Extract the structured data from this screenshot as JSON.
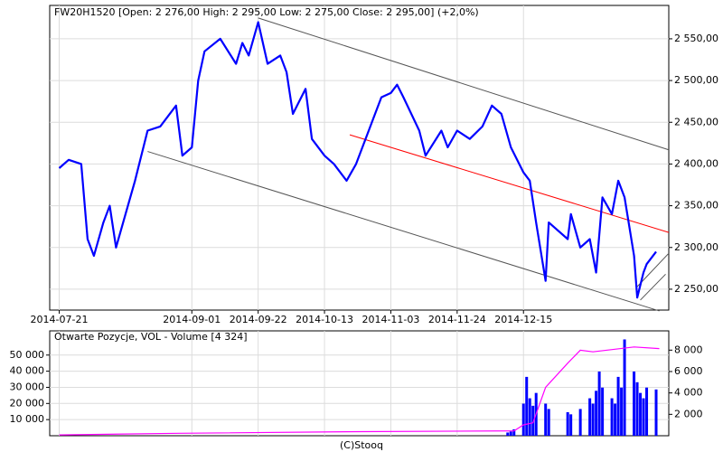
{
  "chart_data": [
    {
      "type": "line",
      "title": "FW20H1520 [Open: 2 276,00  High: 2 295,00  Low: 2 275,00  Close: 2 295,00] (+2,0%)",
      "color": "#0000ff",
      "x": [
        "2014-07-21",
        "2014-07-24",
        "2014-07-28",
        "2014-07-30",
        "2014-08-01",
        "2014-08-04",
        "2014-08-06",
        "2014-08-08",
        "2014-08-11",
        "2014-08-14",
        "2014-08-18",
        "2014-08-22",
        "2014-08-27",
        "2014-08-29",
        "2014-09-01",
        "2014-09-03",
        "2014-09-05",
        "2014-09-10",
        "2014-09-15",
        "2014-09-17",
        "2014-09-19",
        "2014-09-22",
        "2014-09-25",
        "2014-09-29",
        "2014-10-01",
        "2014-10-03",
        "2014-10-07",
        "2014-10-09",
        "2014-10-13",
        "2014-10-16",
        "2014-10-20",
        "2014-10-23",
        "2014-10-27",
        "2014-10-29",
        "2014-10-31",
        "2014-11-03",
        "2014-11-05",
        "2014-11-07",
        "2014-11-12",
        "2014-11-14",
        "2014-11-19",
        "2014-11-21",
        "2014-11-24",
        "2014-11-28",
        "2014-12-02",
        "2014-12-05",
        "2014-12-08",
        "2014-12-11",
        "2014-12-15",
        "2014-12-17",
        "2014-12-19",
        "2014-12-22",
        "2014-12-23",
        "2014-12-29",
        "2014-12-30",
        "2015-01-02",
        "2015-01-05",
        "2015-01-07",
        "2015-01-09",
        "2015-01-12",
        "2015-01-14",
        "2015-01-16",
        "2015-01-19",
        "2015-01-20",
        "2015-01-22",
        "2015-01-23",
        "2015-01-26"
      ],
      "values": [
        2395,
        2405,
        2400,
        2310,
        2290,
        2330,
        2350,
        2300,
        2340,
        2380,
        2440,
        2445,
        2470,
        2410,
        2420,
        2500,
        2535,
        2550,
        2520,
        2545,
        2530,
        2570,
        2520,
        2530,
        2510,
        2460,
        2490,
        2430,
        2410,
        2400,
        2380,
        2400,
        2440,
        2460,
        2480,
        2485,
        2495,
        2480,
        2440,
        2410,
        2440,
        2420,
        2440,
        2430,
        2445,
        2470,
        2460,
        2420,
        2390,
        2380,
        2330,
        2260,
        2330,
        2310,
        2340,
        2300,
        2310,
        2270,
        2360,
        2340,
        2380,
        2360,
        2290,
        2240,
        2270,
        2280,
        2295
      ],
      "trend_lines": [
        {
          "color": "#555555",
          "x": [
            "2014-09-22",
            "2015-01-30"
          ],
          "values": [
            2575,
            2417
          ]
        },
        {
          "color": "#555555",
          "x": [
            "2014-08-18",
            "2015-01-27"
          ],
          "values": [
            2415,
            2224
          ]
        },
        {
          "color": "#ff0000",
          "x": [
            "2014-10-21",
            "2015-01-30"
          ],
          "values": [
            2435,
            2318
          ]
        },
        {
          "color": "#555555",
          "x": [
            "2015-01-20",
            "2015-01-30"
          ],
          "values": [
            2253,
            2293
          ]
        },
        {
          "color": "#555555",
          "x": [
            "2015-01-21",
            "2015-01-29"
          ],
          "values": [
            2237,
            2268
          ]
        }
      ],
      "xlim": [
        "2014-07-18",
        "2015-01-30"
      ],
      "xticks": [
        "2014-07-21",
        "2014-09-01",
        "2014-09-22",
        "2014-10-13",
        "2014-11-03",
        "2014-11-24",
        "2014-12-15"
      ],
      "ylim": [
        2225,
        2590
      ],
      "yticks": [
        {
          "value": 2250,
          "label": "2 250,00"
        },
        {
          "value": 2300,
          "label": "2 300,00"
        },
        {
          "value": 2350,
          "label": "2 350,00"
        },
        {
          "value": 2400,
          "label": "2 400,00"
        },
        {
          "value": 2450,
          "label": "2 450,00"
        },
        {
          "value": 2500,
          "label": "2 500,00"
        },
        {
          "value": 2550,
          "label": "2 550,00"
        }
      ],
      "grid": true
    },
    {
      "type": "bar",
      "title": "Otwarte Pozycje, VOL - Volume [4 324]",
      "series": [
        {
          "type": "bar",
          "axis": "y2",
          "color": "#0000ff",
          "x": [
            "2014-12-10",
            "2014-12-11",
            "2014-12-12",
            "2014-12-15",
            "2014-12-16",
            "2014-12-17",
            "2014-12-18",
            "2014-12-19",
            "2014-12-22",
            "2014-12-23",
            "2014-12-29",
            "2014-12-30",
            "2015-01-02",
            "2015-01-05",
            "2015-01-06",
            "2015-01-07",
            "2015-01-08",
            "2015-01-09",
            "2015-01-12",
            "2015-01-13",
            "2015-01-14",
            "2015-01-15",
            "2015-01-16",
            "2015-01-19",
            "2015-01-20",
            "2015-01-21",
            "2015-01-22",
            "2015-01-23",
            "2015-01-26"
          ],
          "values": [
            300,
            400,
            600,
            3000,
            5500,
            3500,
            2800,
            4000,
            3000,
            2500,
            2200,
            2000,
            2500,
            3500,
            3000,
            4200,
            6000,
            4500,
            3500,
            3000,
            5500,
            4500,
            9000,
            6000,
            5000,
            4000,
            3500,
            4500,
            4324
          ]
        },
        {
          "type": "line",
          "color": "#ff00ff",
          "x": [
            "2014-07-21",
            "2014-08-28",
            "2014-10-24",
            "2014-12-12",
            "2014-12-15",
            "2014-12-18",
            "2014-12-22",
            "2014-12-29",
            "2015-01-02",
            "2015-01-06",
            "2015-01-19",
            "2015-01-27"
          ],
          "values": [
            500,
            1500,
            2500,
            3000,
            6700,
            8000,
            30000,
            45000,
            53000,
            52000,
            55000,
            54000
          ]
        }
      ],
      "ylim": [
        0,
        65000
      ],
      "yticks": [
        {
          "value": 10000,
          "label": "10 000"
        },
        {
          "value": 20000,
          "label": "20 000"
        },
        {
          "value": 30000,
          "label": "30 000"
        },
        {
          "value": 40000,
          "label": "40 000"
        },
        {
          "value": 50000,
          "label": "50 000"
        }
      ],
      "y2lim": [
        0,
        9800
      ],
      "y2ticks": [
        {
          "value": 2000,
          "label": "2 000"
        },
        {
          "value": 4000,
          "label": "4 000"
        },
        {
          "value": 6000,
          "label": "6 000"
        },
        {
          "value": 8000,
          "label": "8 000"
        }
      ],
      "grid": true
    }
  ],
  "footer": "(C)Stooq"
}
